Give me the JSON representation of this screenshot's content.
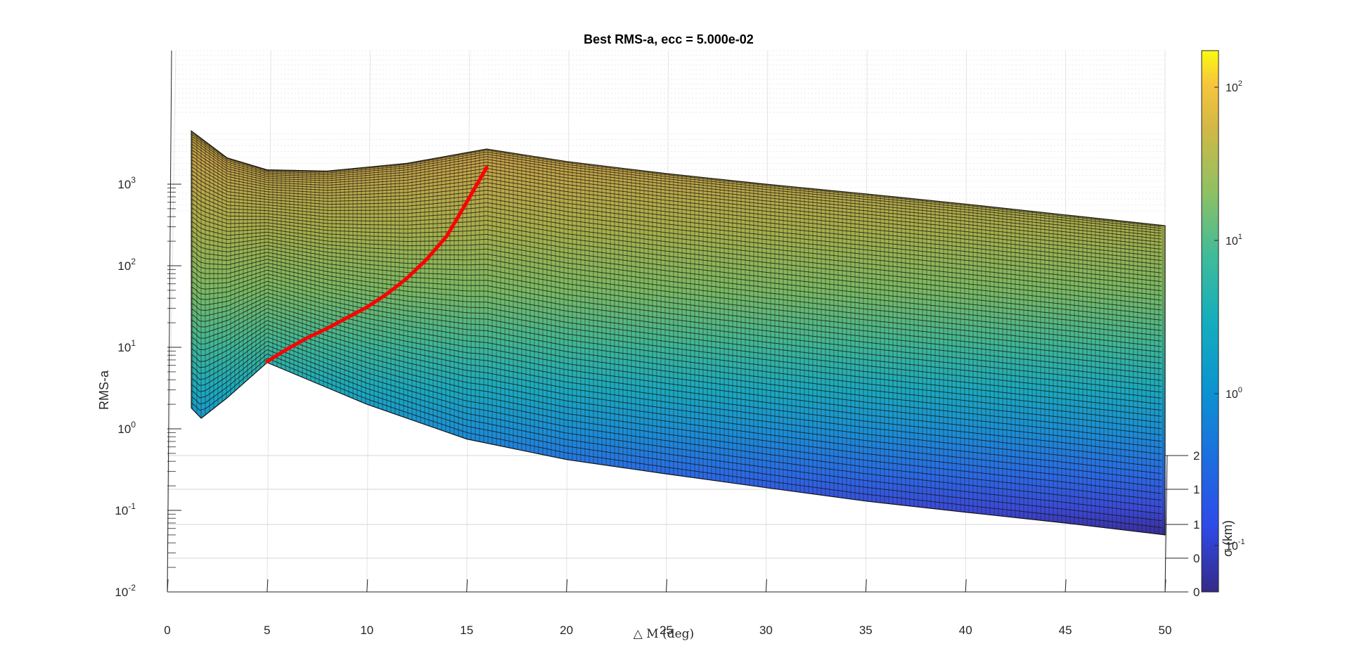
{
  "chart_data": {
    "type": "surface",
    "title": "Best RMS-a, ecc = 5.000e-02",
    "xlabel": "△ M (deg)",
    "ylabel": "RMS-a",
    "zlabel": "σ (km)",
    "xlim": [
      0,
      50
    ],
    "ylim_log": [
      -2,
      4
    ],
    "x_ticks": [
      "0",
      "5",
      "10",
      "15",
      "20",
      "25",
      "30",
      "35",
      "40",
      "45",
      "50"
    ],
    "y_ticks": [
      {
        "base": "10",
        "exp": "-2"
      },
      {
        "base": "10",
        "exp": "-1"
      },
      {
        "base": "10",
        "exp": "0"
      },
      {
        "base": "10",
        "exp": "1"
      },
      {
        "base": "10",
        "exp": "2"
      },
      {
        "base": "10",
        "exp": "3"
      }
    ],
    "sigma_ticks": [
      "0",
      "0",
      "1",
      "1",
      "2"
    ],
    "colorbar": {
      "scale": "log",
      "colormap": "parula",
      "ticks": [
        {
          "base": "10",
          "exp": "-1"
        },
        {
          "base": "10",
          "exp": "0"
        },
        {
          "base": "10",
          "exp": "1"
        },
        {
          "base": "10",
          "exp": "2"
        }
      ]
    },
    "ridge_line": {
      "color": "#ff0000",
      "x": [
        5,
        6,
        7,
        8,
        9,
        10,
        11,
        12,
        13,
        14,
        15,
        16
      ],
      "y": [
        6.7,
        9.5,
        13,
        17,
        23,
        31,
        45,
        70,
        120,
        230,
        600,
        1600
      ]
    },
    "front_edge": {
      "x": [
        1.2,
        1.7,
        3,
        5,
        10,
        15,
        20,
        25,
        30,
        35,
        40,
        45,
        50
      ],
      "y": [
        1.8,
        1.35,
        2.4,
        6.5,
        2.0,
        0.75,
        0.42,
        0.28,
        0.19,
        0.13,
        0.095,
        0.07,
        0.05
      ]
    },
    "back_edge": {
      "x": [
        1.2,
        3,
        5,
        8,
        12,
        16,
        20,
        25,
        30,
        35,
        40,
        45,
        50
      ],
      "y": [
        4500,
        2100,
        1500,
        1450,
        1800,
        2700,
        1900,
        1350,
        1000,
        760,
        570,
        420,
        310
      ]
    },
    "grid": true
  }
}
